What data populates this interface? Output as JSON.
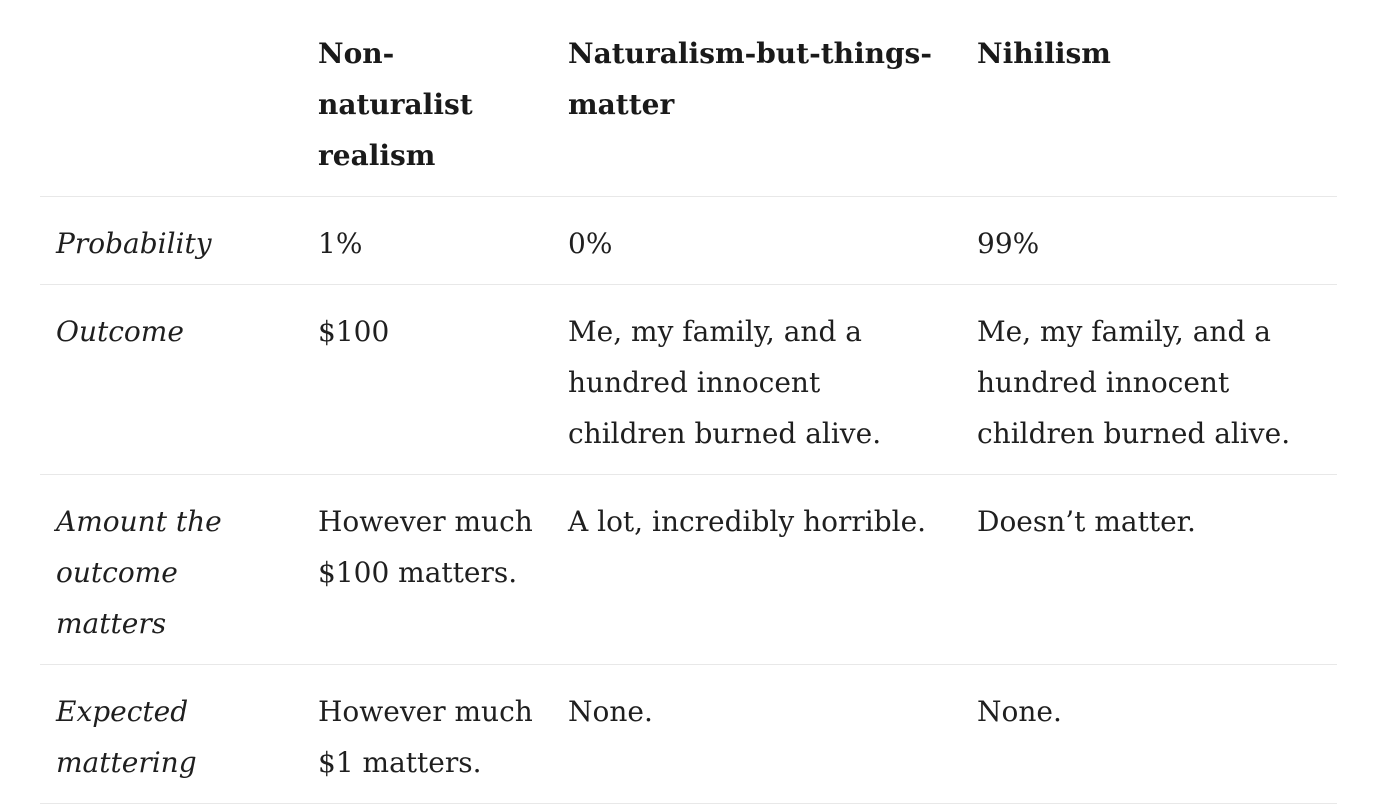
{
  "table": {
    "headers": [
      "",
      "Non-naturalist realism",
      "Naturalism-but-things-matter",
      "Nihilism"
    ],
    "rows": [
      {
        "label": "Probability",
        "cells": [
          "1%",
          "0%",
          "99%"
        ]
      },
      {
        "label": "Outcome",
        "cells": [
          "$100",
          "Me, my family, and a hundred innocent children burned alive.",
          "Me, my family, and a hundred innocent children burned alive."
        ]
      },
      {
        "label": "Amount the outcome matters",
        "cells": [
          "However much $100 matters.",
          "A lot, incredibly horrible.",
          "Doesn’t matter."
        ]
      },
      {
        "label": "Expected mattering",
        "cells": [
          "However much $1 matters.",
          "None.",
          "None."
        ]
      }
    ]
  }
}
